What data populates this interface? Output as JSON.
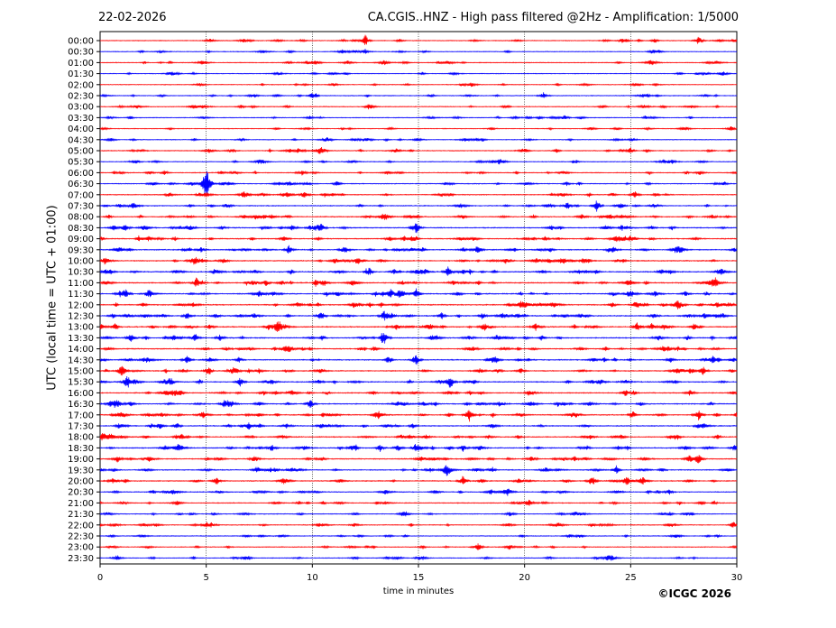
{
  "header": {
    "date": "22-02-2026",
    "title": "CA.CGIS..HNZ - High pass filtered @2Hz - Amplification: 1/5000"
  },
  "footer": {
    "copyright": "©ICGC 2026"
  },
  "chart_data": {
    "type": "line",
    "title": "CA.CGIS..HNZ - High pass filtered @2Hz - Amplification: 1/5000",
    "xlabel": "time in minutes",
    "ylabel": "UTC (local time = UTC + 01:00)",
    "xlim": [
      0,
      30
    ],
    "xticks": [
      "0",
      "5",
      "10",
      "15",
      "20",
      "25",
      "30"
    ],
    "x_gridlines": [
      5,
      10,
      15,
      20,
      25
    ],
    "grid": "vertical dotted",
    "series_colors": [
      "#ff0000",
      "#0000ff"
    ],
    "rows": [
      "00:00",
      "00:30",
      "01:00",
      "01:30",
      "02:00",
      "02:30",
      "03:00",
      "03:30",
      "04:00",
      "04:30",
      "05:00",
      "05:30",
      "06:00",
      "06:30",
      "07:00",
      "07:30",
      "08:00",
      "08:30",
      "09:00",
      "09:30",
      "10:00",
      "10:30",
      "11:00",
      "11:30",
      "12:00",
      "12:30",
      "13:00",
      "13:30",
      "14:00",
      "14:30",
      "15:00",
      "15:30",
      "16:00",
      "16:30",
      "17:00",
      "17:30",
      "18:00",
      "18:30",
      "19:00",
      "19:30",
      "20:00",
      "20:30",
      "21:00",
      "21:30",
      "22:00",
      "22:30",
      "23:00",
      "23:30"
    ],
    "row_activity": [
      0.5,
      0.4,
      0.5,
      0.4,
      0.4,
      0.5,
      0.5,
      0.5,
      0.4,
      0.5,
      0.6,
      0.5,
      0.6,
      0.6,
      0.7,
      0.7,
      0.8,
      0.9,
      0.9,
      0.9,
      0.9,
      1.0,
      1.0,
      1.0,
      1.0,
      1.0,
      1.0,
      1.0,
      0.9,
      0.9,
      0.9,
      0.9,
      0.9,
      0.9,
      1.0,
      0.9,
      0.9,
      0.9,
      0.9,
      0.8,
      0.8,
      0.7,
      0.7,
      0.6,
      0.6,
      0.5,
      0.5,
      0.5
    ],
    "events": [
      {
        "row": "00:00",
        "t": 12.5,
        "amp": 0.6
      },
      {
        "row": "00:00",
        "t": 28.2,
        "amp": 0.4
      },
      {
        "row": "02:30",
        "t": 10.0,
        "amp": 0.3
      },
      {
        "row": "02:30",
        "t": 20.9,
        "amp": 0.3
      },
      {
        "row": "03:30",
        "t": 21.9,
        "amp": 0.25
      },
      {
        "row": "05:00",
        "t": 25.0,
        "amp": 0.3
      },
      {
        "row": "06:30",
        "t": 5.0,
        "amp": 1.8
      },
      {
        "row": "07:00",
        "t": 25.2,
        "amp": 0.35
      },
      {
        "row": "07:30",
        "t": 23.4,
        "amp": 0.6
      },
      {
        "row": "08:30",
        "t": 1.2,
        "amp": 0.4
      },
      {
        "row": "08:30",
        "t": 10.4,
        "amp": 0.4
      },
      {
        "row": "08:30",
        "t": 14.9,
        "amp": 0.4
      },
      {
        "row": "09:30",
        "t": 8.9,
        "amp": 0.45
      },
      {
        "row": "09:30",
        "t": 17.8,
        "amp": 0.55
      },
      {
        "row": "10:30",
        "t": 16.4,
        "amp": 0.5
      },
      {
        "row": "11:30",
        "t": 1.2,
        "amp": 0.45
      },
      {
        "row": "11:30",
        "t": 13.7,
        "amp": 0.4
      },
      {
        "row": "11:30",
        "t": 14.9,
        "amp": 0.5
      },
      {
        "row": "12:30",
        "t": 10.4,
        "amp": 0.45
      },
      {
        "row": "12:30",
        "t": 13.4,
        "amp": 0.55
      },
      {
        "row": "13:00",
        "t": 25.3,
        "amp": 0.5
      },
      {
        "row": "13:00",
        "t": 28.0,
        "amp": 0.35
      },
      {
        "row": "13:30",
        "t": 13.4,
        "amp": 0.55
      },
      {
        "row": "14:30",
        "t": 4.1,
        "amp": 0.3
      },
      {
        "row": "14:30",
        "t": 14.9,
        "amp": 0.45
      },
      {
        "row": "15:00",
        "t": 28.4,
        "amp": 0.45
      },
      {
        "row": "15:30",
        "t": 6.6,
        "amp": 0.4
      },
      {
        "row": "15:30",
        "t": 16.5,
        "amp": 0.7
      },
      {
        "row": "16:30",
        "t": 9.9,
        "amp": 0.45
      },
      {
        "row": "17:00",
        "t": 17.4,
        "amp": 0.4
      },
      {
        "row": "17:00",
        "t": 28.2,
        "amp": 0.55
      },
      {
        "row": "18:30",
        "t": 8.1,
        "amp": 0.35
      },
      {
        "row": "18:30",
        "t": 13.2,
        "amp": 0.35
      },
      {
        "row": "18:30",
        "t": 17.1,
        "amp": 0.35
      },
      {
        "row": "18:30",
        "t": 29.9,
        "amp": 0.35
      },
      {
        "row": "19:00",
        "t": 28.2,
        "amp": 0.5
      },
      {
        "row": "19:30",
        "t": 7.4,
        "amp": 0.35
      },
      {
        "row": "19:30",
        "t": 16.3,
        "amp": 0.55
      },
      {
        "row": "20:00",
        "t": 17.1,
        "amp": 0.45
      },
      {
        "row": "20:30",
        "t": 26.8,
        "amp": 0.3
      },
      {
        "row": "22:00",
        "t": 5.0,
        "amp": 0.25
      },
      {
        "row": "23:00",
        "t": 17.8,
        "amp": 0.2
      },
      {
        "row": "23:30",
        "t": 0.8,
        "amp": 0.3
      }
    ]
  }
}
